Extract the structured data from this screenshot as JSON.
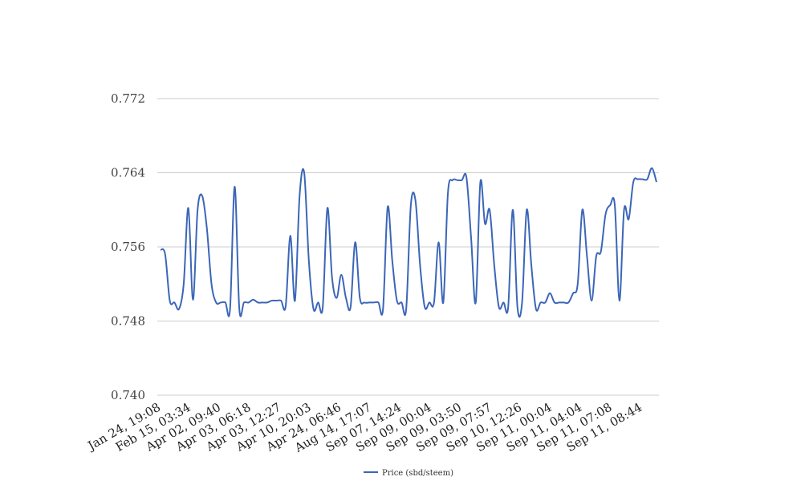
{
  "chart_data": {
    "type": "line",
    "title": "",
    "xlabel": "",
    "ylabel": "",
    "ylim": [
      0.74,
      0.772
    ],
    "yticks": [
      "0.740",
      "0.748",
      "0.756",
      "0.764",
      "0.772"
    ],
    "grid": true,
    "legend_position": "bottom",
    "line_color": "#3b66b8",
    "grid_color": "#cccccc",
    "x_tick_labels": [
      "Jan 24, 19:08",
      "Feb 15, 03:34",
      "Apr 02, 09:40",
      "Apr 03, 06:18",
      "Apr 03, 12:27",
      "Apr 10, 20:03",
      "Apr 24, 06:46",
      "Aug 14, 17:07",
      "Sep 07, 14:24",
      "Sep 09, 00:04",
      "Sep 09, 03:50",
      "Sep 09, 07:57",
      "Sep 10, 12:26",
      "Sep 11, 00:04",
      "Sep 11, 04:04",
      "Sep 11, 07:08",
      "Sep 11, 08:44"
    ],
    "series": [
      {
        "name": "Price (sbd/steem)",
        "values": [
          0.7557,
          0.7552,
          0.7502,
          0.75,
          0.7493,
          0.752,
          0.7602,
          0.7503,
          0.76,
          0.7615,
          0.758,
          0.752,
          0.75,
          0.75,
          0.75,
          0.7493,
          0.7625,
          0.7493,
          0.75,
          0.75,
          0.7503,
          0.75,
          0.75,
          0.75,
          0.7502,
          0.7502,
          0.7502,
          0.7496,
          0.7572,
          0.7502,
          0.7615,
          0.764,
          0.7545,
          0.7493,
          0.75,
          0.7495,
          0.7602,
          0.7527,
          0.7505,
          0.753,
          0.7505,
          0.7495,
          0.7565,
          0.7505,
          0.75,
          0.75,
          0.75,
          0.75,
          0.7493,
          0.7603,
          0.7545,
          0.7502,
          0.75,
          0.7493,
          0.7605,
          0.761,
          0.754,
          0.7495,
          0.75,
          0.75,
          0.7565,
          0.75,
          0.7618,
          0.7632,
          0.7632,
          0.7632,
          0.7635,
          0.757,
          0.75,
          0.763,
          0.7585,
          0.76,
          0.754,
          0.7495,
          0.75,
          0.7495,
          0.76,
          0.7495,
          0.75,
          0.76,
          0.754,
          0.7493,
          0.75,
          0.75,
          0.751,
          0.75,
          0.75,
          0.75,
          0.75,
          0.751,
          0.752,
          0.76,
          0.755,
          0.7502,
          0.755,
          0.7555,
          0.7595,
          0.7605,
          0.7605,
          0.7502,
          0.76,
          0.759,
          0.763,
          0.7633,
          0.7633,
          0.7633,
          0.7645,
          0.763
        ]
      }
    ]
  }
}
